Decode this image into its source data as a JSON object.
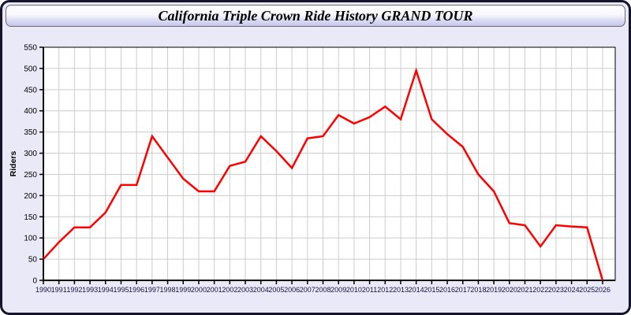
{
  "window": {
    "title": "California Triple Crown Ride History GRAND TOUR"
  },
  "chart_data": {
    "type": "line",
    "title": "California Triple Crown Ride History GRAND TOUR",
    "xlabel": "",
    "ylabel": "Riders",
    "x": [
      1990,
      1991,
      1992,
      1993,
      1994,
      1995,
      1996,
      1997,
      1998,
      1999,
      2000,
      2001,
      2002,
      2003,
      2004,
      2005,
      2006,
      2007,
      2008,
      2009,
      2010,
      2011,
      2012,
      2013,
      2014,
      2015,
      2016,
      2017,
      2018,
      2019,
      2020,
      2021,
      2022,
      2023,
      2024,
      2025,
      2026
    ],
    "series": [
      {
        "name": "Riders",
        "color": "#ff0000",
        "values": [
          50,
          90,
          125,
          125,
          160,
          225,
          225,
          340,
          290,
          240,
          210,
          210,
          270,
          280,
          340,
          305,
          265,
          335,
          340,
          390,
          370,
          385,
          410,
          380,
          495,
          380,
          345,
          315,
          250,
          210,
          135,
          130,
          80,
          130,
          127,
          125,
          0
        ]
      }
    ],
    "ylim": [
      0,
      550
    ],
    "ytick_step": 50,
    "grid": true,
    "legend": false,
    "colors": {
      "plot_bg": "#ffffff",
      "panel_bg": "#e9e9f8",
      "grid": "#cccccc",
      "axis": "#000000",
      "ytick_label": "#000000",
      "xtick_label": "#131345"
    }
  }
}
